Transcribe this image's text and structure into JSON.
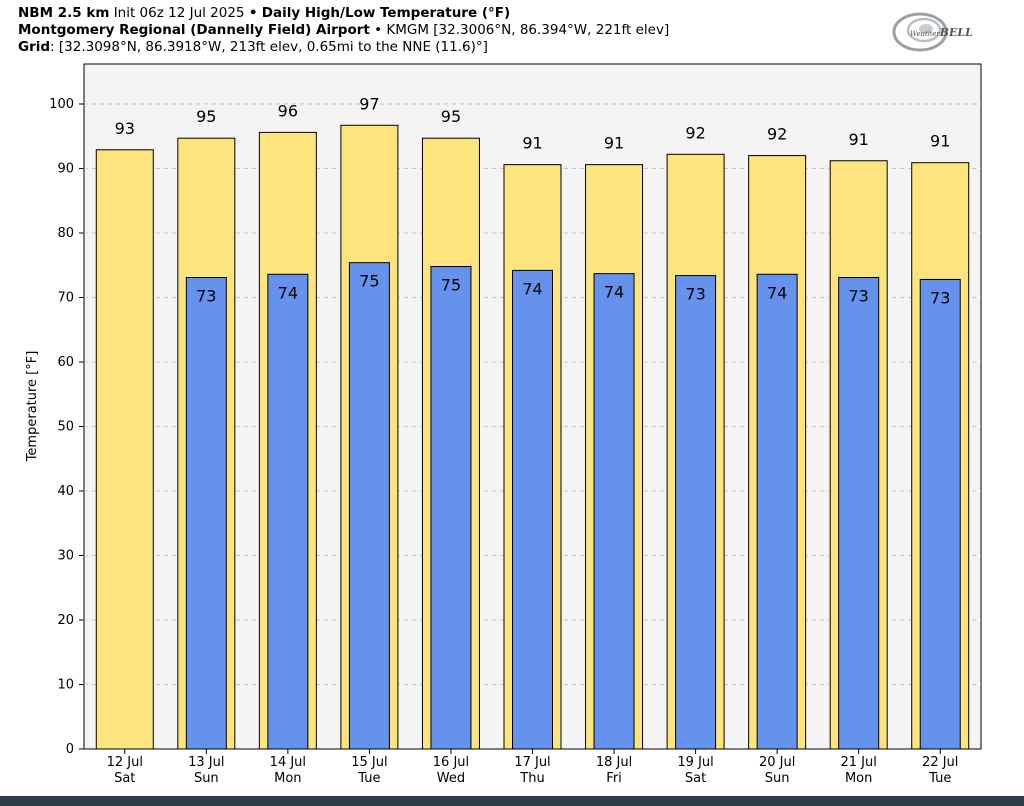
{
  "header": {
    "line1": {
      "model": "NBM 2.5 km",
      "init": "Init 06z 12 Jul 2025",
      "sep": "•",
      "product": "Daily High/Low Temperature (°F)"
    },
    "line2": {
      "station": "Montgomery Regional (Dannelly Field) Airport",
      "sep": "•",
      "details": "KMGM [32.3006°N, 86.394°W, 221ft elev]"
    },
    "line3": {
      "label": "Grid",
      "details": ": [32.3098°N, 86.3918°W, 213ft elev, 0.65mi to the NNE (11.6)°]"
    }
  },
  "logo": {
    "brand_pre": "Weather",
    "brand_post": "BELL",
    "icon": "swirl-logo-icon"
  },
  "chart_data": {
    "type": "bar",
    "ylabel": "Temperature [°F]",
    "ylim": [
      0,
      100
    ],
    "yticks": [
      0,
      10,
      20,
      30,
      40,
      50,
      60,
      70,
      80,
      90,
      100
    ],
    "grid": true,
    "categories": [
      {
        "date": "12 Jul",
        "day": "Sat"
      },
      {
        "date": "13 Jul",
        "day": "Sun"
      },
      {
        "date": "14 Jul",
        "day": "Mon"
      },
      {
        "date": "15 Jul",
        "day": "Tue"
      },
      {
        "date": "16 Jul",
        "day": "Wed"
      },
      {
        "date": "17 Jul",
        "day": "Thu"
      },
      {
        "date": "18 Jul",
        "day": "Fri"
      },
      {
        "date": "19 Jul",
        "day": "Sat"
      },
      {
        "date": "20 Jul",
        "day": "Sun"
      },
      {
        "date": "21 Jul",
        "day": "Mon"
      },
      {
        "date": "22 Jul",
        "day": "Tue"
      }
    ],
    "series": [
      {
        "key": "high",
        "values": [
          92.9,
          94.7,
          95.6,
          96.7,
          94.7,
          90.6,
          90.6,
          92.2,
          92.0,
          91.2,
          90.9
        ],
        "labels": [
          "93",
          "95",
          "96",
          "97",
          "95",
          "91",
          "91",
          "92",
          "92",
          "91",
          "91"
        ],
        "color": "#fde47f"
      },
      {
        "key": "low",
        "values": [
          null,
          73.1,
          73.6,
          75.4,
          74.8,
          74.2,
          73.7,
          73.4,
          73.6,
          73.1,
          72.8
        ],
        "labels": [
          "",
          "73",
          "74",
          "75",
          "75",
          "74",
          "74",
          "73",
          "74",
          "73",
          "73"
        ],
        "color": "#6592ec"
      }
    ]
  }
}
